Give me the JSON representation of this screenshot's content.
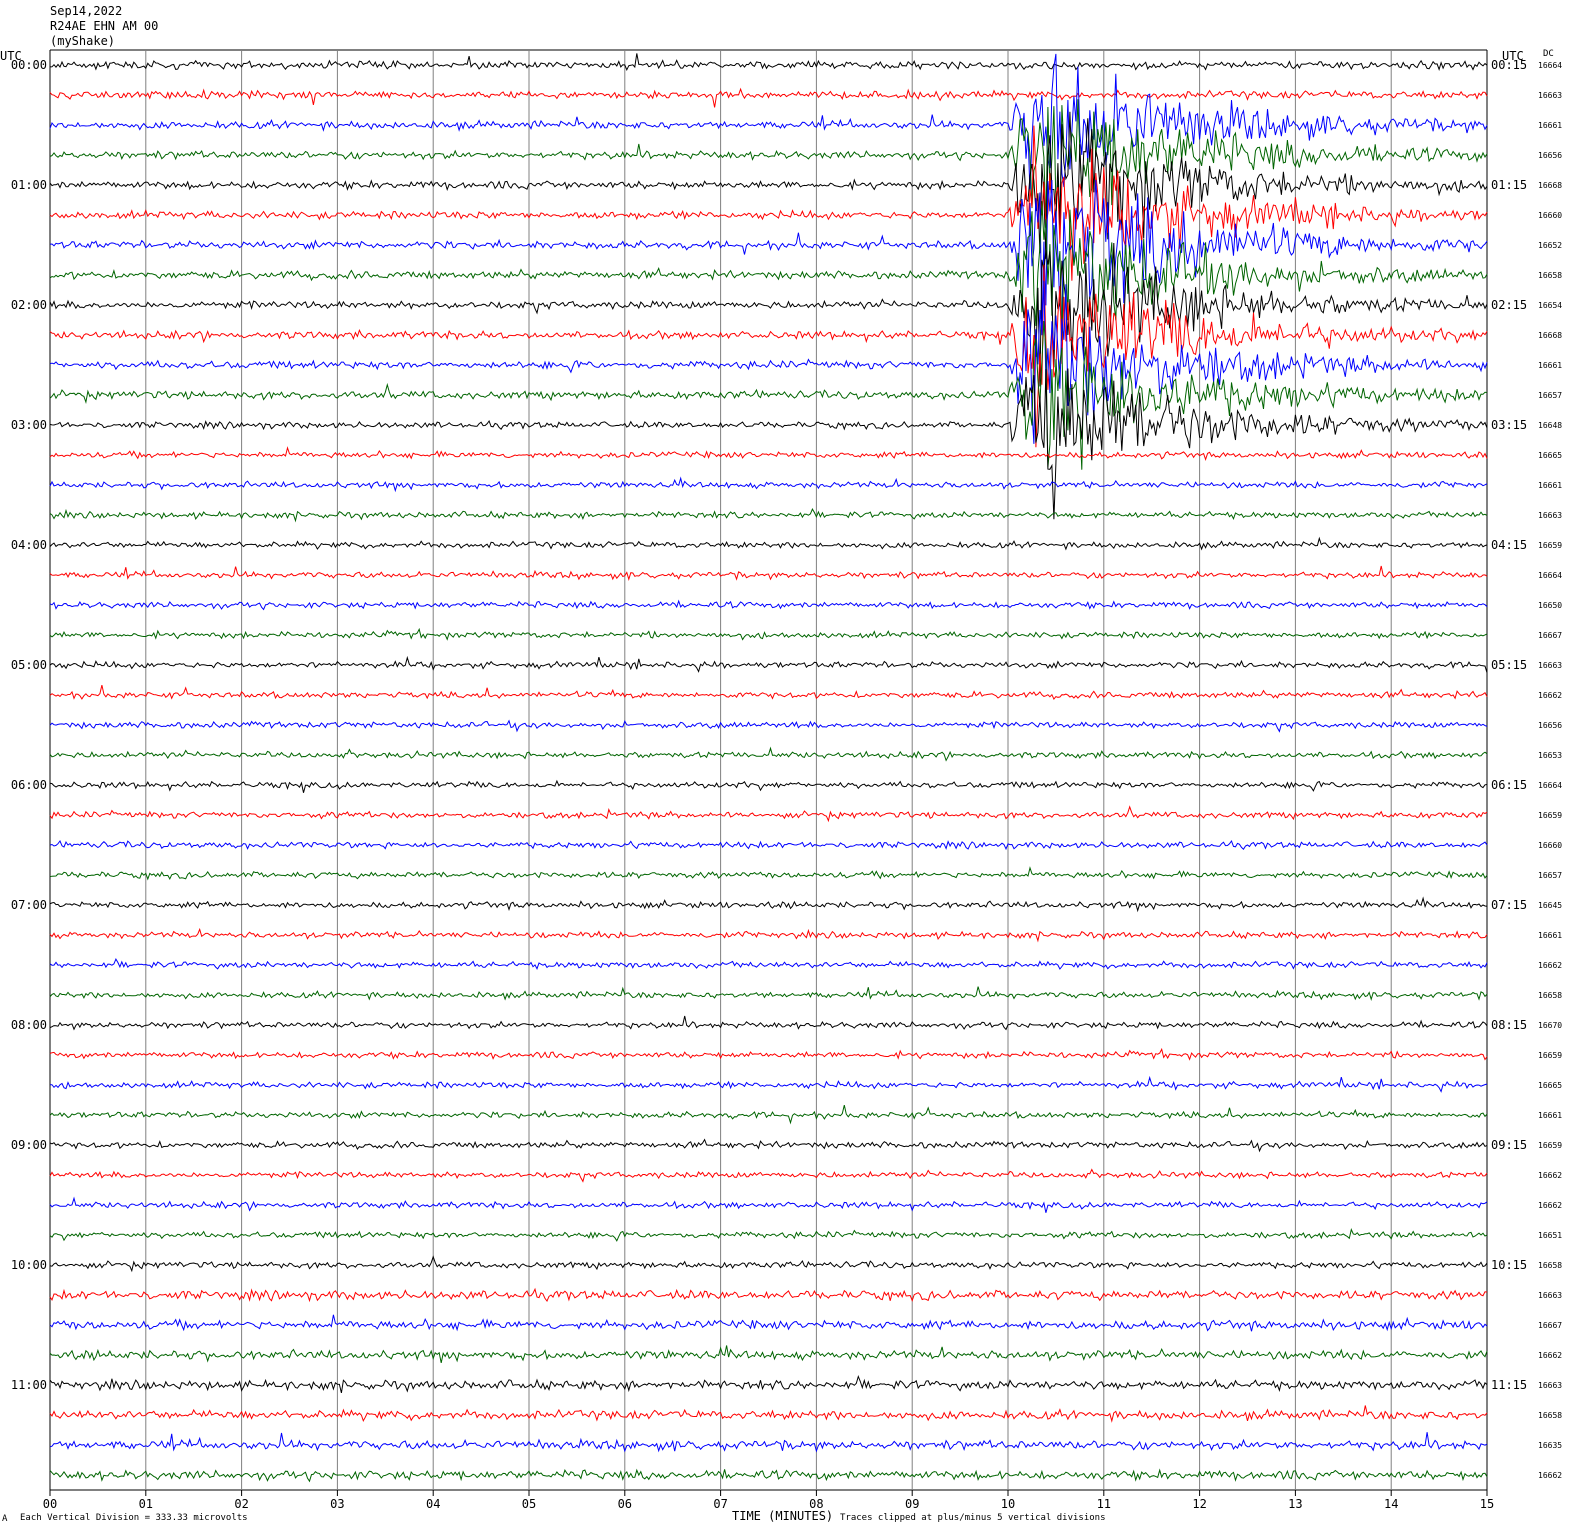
{
  "header": {
    "date": "Sep14,2022",
    "station": "R24AE EHN AM 00",
    "network": "(myShake)"
  },
  "left_axis_label": "UTC",
  "right_axis_label": "UTC",
  "dc_label": "DC",
  "footer": {
    "division": "Each Vertical Division =  333.33 microvolts",
    "xlabel": "TIME (MINUTES)",
    "clip_note": "Traces clipped at plus/minus 5 vertical divisions",
    "corner_mark": "A"
  },
  "colors": {
    "black": "#000000",
    "red": "#ff0000",
    "blue": "#0000ff",
    "green": "#006400",
    "grid": "#808080"
  },
  "chart_data": {
    "type": "line",
    "subtype": "helicorder",
    "xlim": [
      0,
      15
    ],
    "x_ticks": [
      "00",
      "01",
      "02",
      "03",
      "04",
      "05",
      "06",
      "07",
      "08",
      "09",
      "10",
      "11",
      "12",
      "13",
      "14",
      "15"
    ],
    "trace_minutes": 15,
    "color_cycle": [
      "black",
      "red",
      "blue",
      "green"
    ],
    "hour_labels_left": [
      "00:00",
      "01:00",
      "02:00",
      "03:00",
      "04:00",
      "05:00",
      "06:00",
      "07:00",
      "08:00",
      "09:00",
      "10:00",
      "11:00"
    ],
    "hour_labels_right": [
      "00:15",
      "01:15",
      "02:15",
      "03:15",
      "04:15",
      "05:15",
      "06:15",
      "07:15",
      "08:15",
      "09:15",
      "10:15",
      "11:15"
    ],
    "dc_values": [
      16664,
      16663,
      16661,
      16656,
      16668,
      16660,
      16652,
      16658,
      16654,
      16668,
      16661,
      16657,
      16648,
      16665,
      16661,
      16663,
      16659,
      16664,
      16650,
      16667,
      16663,
      16662,
      16656,
      16653,
      16664,
      16659,
      16660,
      16657,
      16645,
      16661,
      16662,
      16658,
      16670,
      16659,
      16665,
      16661,
      16659,
      16662,
      16662,
      16651,
      16658,
      16663,
      16667,
      16662,
      16663,
      16658,
      16635,
      16662
    ],
    "event": {
      "description_visible": "clipped earthquake signal",
      "start_minute": 10.0,
      "peak_minute": 10.3,
      "rows_affected": [
        2,
        12
      ]
    }
  }
}
